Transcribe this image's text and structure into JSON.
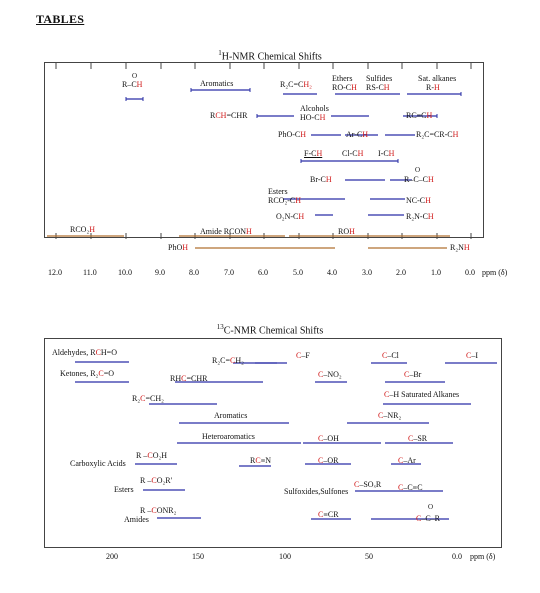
{
  "page_heading": "TABLES",
  "h_chart": {
    "title": "1H-NMR Chemical Shifts",
    "axis_ticks": [
      "12.0",
      "11.0",
      "10.0",
      "9.0",
      "8.0",
      "7.0",
      "6.0",
      "5.0",
      "4.0",
      "3.0",
      "2.0",
      "1.0",
      "0.0"
    ],
    "unit": "ppm (δ)",
    "labels": {
      "aldehyde": "R-C(=O)-H",
      "aromatics": "Aromatics",
      "r2c_ch2": "R₂C=CH₂",
      "ethers": "Ethers",
      "ethers_sub": "RO-CH",
      "sulfides": "Sulfides",
      "sulfides_sub": "RS-CH",
      "sat_alkanes": "Sat. alkanes",
      "sat_alkanes_sub": "R-H",
      "rch_chr": "RCH=CHR",
      "alcohols": "Alcohols",
      "alcohols_sub": "HO-CH",
      "rc_ch": "RC≡CH",
      "pho_ch": "PhO-CH",
      "ar_ch": "Ar-CH",
      "r2c_cr_ch": "R₂C=CR-CH",
      "f_ch": "F-CH",
      "cl_ch": "Cl-CH",
      "i_ch": "I-CH",
      "br_ch": "Br-CH",
      "ketone_ch": "R-C(=O)-CH",
      "esters": "Esters",
      "esters_sub": "RCO₂-CH",
      "nc_ch": "NC-CH",
      "o2n_ch": "O₂N-CH",
      "r2n_ch": "R₂N-CH",
      "rco2h": "RCO₂H",
      "amide": "Amide RCONH",
      "roh": "ROH",
      "phoh": "PhOH",
      "r2nh": "R₂NH"
    }
  },
  "c_chart": {
    "title": "13C-NMR Chemical Shifts",
    "axis_ticks": [
      "200",
      "150",
      "100",
      "50",
      "0.0"
    ],
    "unit": "ppm (δ)",
    "labels": {
      "aldehydes": "Aldehydes, RCH=O",
      "ketones": "Ketones, R₂C=O",
      "r2c_ch2": "R₂C=CH₂",
      "rhc_chr": "RHC=CHR",
      "r2c_ch2_b": "R₂C=CH₂",
      "c_f": "C–F",
      "c_cl": "C–Cl",
      "c_i": "C–I",
      "c_no2": "C–NO₂",
      "c_br": "C–Br",
      "c_h_sat": "C–H  Saturated Alkanes",
      "aromatics": "Aromatics",
      "c_nr2": "C–NR₂",
      "heteroaromatics": "Heteroaromatics",
      "c_oh": "C–OH",
      "c_sr": "C–SR",
      "r_co2h": "R–CO₂H",
      "carboxylic": "Carboxylic Acids",
      "rc_n": "RC≡N",
      "c_or": "C–OR",
      "c_ar": "C–Ar",
      "r_co2r": "R–CO₂R'",
      "esters": "Esters",
      "sulfoxides": "Sulfoxides,Sulfones",
      "c_sox_r": "C–SOₓR",
      "c_cc": "C–C≡C",
      "r_conr2": "R–CONR₂",
      "amides": "Amides",
      "c_cr": "C≡CR",
      "c_co_r": "C–C(=O)–R"
    }
  },
  "colors": {
    "bar": "#2a2fa6",
    "broad": "#b07030",
    "highlight": "#d01818",
    "ink": "#111111"
  }
}
